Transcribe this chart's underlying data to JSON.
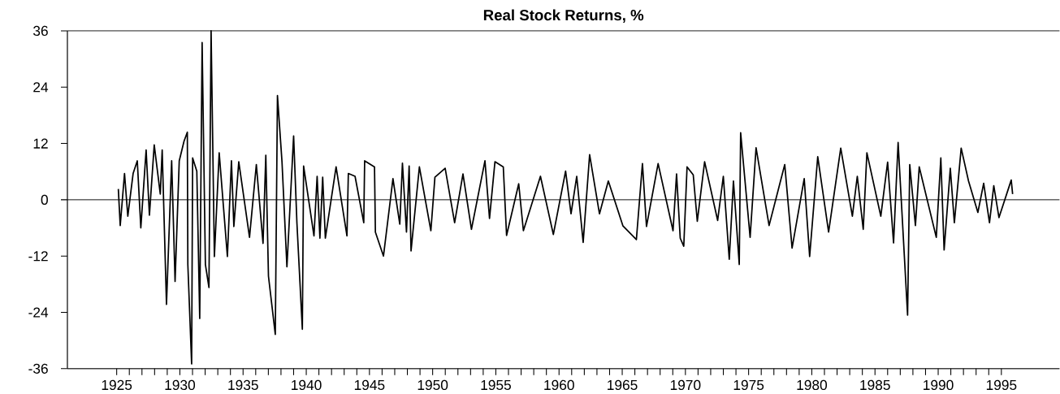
{
  "chart_data": {
    "type": "line",
    "title": "Real Stock Returns, %",
    "x": [
      1925.13,
      1925.28,
      1925.62,
      1925.88,
      1926.3,
      1926.63,
      1926.91,
      1927.33,
      1927.59,
      1927.97,
      1928.45,
      1928.6,
      1928.94,
      1929.35,
      1929.62,
      1929.95,
      1930.33,
      1930.59,
      1930.63,
      1930.93,
      1931.01,
      1931.34,
      1931.57,
      1931.76,
      1932.02,
      1932.3,
      1932.47,
      1932.73,
      1933.11,
      1933.76,
      1934.08,
      1934.27,
      1934.66,
      1935.51,
      1936.05,
      1936.58,
      1936.8,
      1937.01,
      1937.55,
      1937.72,
      1938.08,
      1938.47,
      1939.0,
      1939.26,
      1939.69,
      1939.79,
      1940.61,
      1940.86,
      1941.08,
      1941.3,
      1941.51,
      1942.36,
      1943.22,
      1943.33,
      1943.86,
      1944.55,
      1944.62,
      1945.4,
      1945.47,
      1946.11,
      1946.86,
      1947.4,
      1947.61,
      1947.93,
      1948.14,
      1948.29,
      1948.95,
      1949.86,
      1950.18,
      1950.99,
      1951.74,
      1952.4,
      1953.07,
      1954.14,
      1954.5,
      1954.93,
      1955.59,
      1955.85,
      1956.81,
      1957.18,
      1958.53,
      1959.55,
      1960.52,
      1960.95,
      1961.4,
      1961.91,
      1962.42,
      1963.2,
      1963.9,
      1965.06,
      1966.12,
      1966.6,
      1966.92,
      1967.84,
      1969.02,
      1969.3,
      1969.59,
      1969.87,
      1970.13,
      1970.62,
      1970.94,
      1971.52,
      1972.55,
      1973.0,
      1973.47,
      1973.8,
      1974.26,
      1974.37,
      1975.12,
      1975.59,
      1976.62,
      1977.86,
      1978.44,
      1979.4,
      1979.83,
      1980.47,
      1981.33,
      1982.29,
      1983.21,
      1983.6,
      1984.07,
      1984.36,
      1985.46,
      1986.0,
      1986.47,
      1986.83,
      1987.58,
      1987.75,
      1988.2,
      1988.5,
      1989.85,
      1990.21,
      1990.47,
      1990.96,
      1991.28,
      1991.82,
      1992.4,
      1993.14,
      1993.6,
      1994.06,
      1994.4,
      1994.81,
      1995.78,
      1995.89
    ],
    "values": [
      2.3,
      -5.5,
      5.6,
      -3.5,
      5.6,
      8.3,
      -6,
      10.6,
      -3.3,
      11.7,
      1.2,
      10.6,
      -22.3,
      8.3,
      -17.4,
      8.3,
      12.5,
      14.4,
      -13.8,
      -35,
      8.9,
      6.1,
      -25.3,
      33.5,
      -13.8,
      -18.7,
      36,
      -12.1,
      10,
      -12.1,
      8.3,
      -5.7,
      8.1,
      -8,
      7.5,
      -9.3,
      9.5,
      -16.3,
      -28.7,
      22.2,
      8.1,
      -14.3,
      13.6,
      -4.9,
      -27.6,
      7.2,
      -7.7,
      5,
      -8.2,
      4.8,
      -8.2,
      7,
      -7.7,
      5.6,
      5,
      -4.9,
      8.3,
      7,
      -6.9,
      -12,
      4.5,
      -5.2,
      7.8,
      -6.9,
      7.2,
      -10.9,
      7,
      -6.6,
      4.8,
      6.7,
      -4.9,
      5.5,
      -6.3,
      8.3,
      -4,
      8.1,
      7,
      -7.6,
      3.4,
      -6.6,
      5,
      -7.4,
      6.1,
      -3,
      5,
      -9.1,
      9.6,
      -3,
      4,
      -5.6,
      -8.5,
      7.7,
      -5.7,
      7.7,
      -6.6,
      5.5,
      -8.2,
      -9.9,
      7,
      5.3,
      -4.6,
      8.1,
      -4.4,
      5,
      -12.7,
      4,
      -13.8,
      14.3,
      -8,
      11.1,
      -5.5,
      7.5,
      -10.3,
      4.5,
      -12.1,
      9.2,
      -6.9,
      11,
      -3.5,
      5,
      -6.3,
      10,
      -3.5,
      8,
      -9.2,
      12.2,
      -24.6,
      7.5,
      -5.5,
      7,
      -8,
      8.9,
      -10.7,
      6.7,
      -4.9,
      11,
      4,
      -2.7,
      3.5,
      -4.9,
      3,
      -3.8,
      4.2,
      1.2
    ],
    "color": "#000000",
    "marker": "none",
    "line_style": "solid",
    "xlim": [
      1921.1,
      1999.6
    ],
    "ylim": [
      -36,
      36
    ],
    "xticks": [
      1925,
      {
        "value": 1926,
        "label": null
      },
      {
        "value": 1927,
        "label": null
      },
      {
        "value": 1928,
        "label": null
      },
      {
        "value": 1929,
        "label": null
      },
      1930,
      {
        "value": 1931,
        "label": null
      },
      {
        "value": 1932,
        "label": null
      },
      {
        "value": 1933,
        "label": null
      },
      {
        "value": 1934,
        "label": null
      },
      1935,
      {
        "value": 1936,
        "label": null
      },
      {
        "value": 1937,
        "label": null
      },
      {
        "value": 1938,
        "label": null
      },
      {
        "value": 1939,
        "label": null
      },
      1940,
      {
        "value": 1941,
        "label": null
      },
      {
        "value": 1942,
        "label": null
      },
      {
        "value": 1943,
        "label": null
      },
      {
        "value": 1944,
        "label": null
      },
      1945,
      {
        "value": 1946,
        "label": null
      },
      {
        "value": 1947,
        "label": null
      },
      {
        "value": 1948,
        "label": null
      },
      {
        "value": 1949,
        "label": null
      },
      1950,
      {
        "value": 1951,
        "label": null
      },
      {
        "value": 1952,
        "label": null
      },
      {
        "value": 1953,
        "label": null
      },
      {
        "value": 1954,
        "label": null
      },
      1955,
      {
        "value": 1956,
        "label": null
      },
      {
        "value": 1957,
        "label": null
      },
      {
        "value": 1958,
        "label": null
      },
      {
        "value": 1959,
        "label": null
      },
      1960,
      {
        "value": 1961,
        "label": null
      },
      {
        "value": 1962,
        "label": null
      },
      {
        "value": 1963,
        "label": null
      },
      {
        "value": 1964,
        "label": null
      },
      1965,
      {
        "value": 1966,
        "label": null
      },
      {
        "value": 1967,
        "label": null
      },
      {
        "value": 1968,
        "label": null
      },
      {
        "value": 1969,
        "label": null
      },
      1970,
      {
        "value": 1971,
        "label": null
      },
      {
        "value": 1972,
        "label": null
      },
      {
        "value": 1973,
        "label": null
      },
      {
        "value": 1974,
        "label": null
      },
      1975,
      {
        "value": 1976,
        "label": null
      },
      {
        "value": 1977,
        "label": null
      },
      {
        "value": 1978,
        "label": null
      },
      {
        "value": 1979,
        "label": null
      },
      1980,
      {
        "value": 1981,
        "label": null
      },
      {
        "value": 1982,
        "label": null
      },
      {
        "value": 1983,
        "label": null
      },
      {
        "value": 1984,
        "label": null
      },
      1985,
      {
        "value": 1986,
        "label": null
      },
      {
        "value": 1987,
        "label": null
      },
      {
        "value": 1988,
        "label": null
      },
      {
        "value": 1989,
        "label": null
      },
      1990,
      {
        "value": 1991,
        "label": null
      },
      {
        "value": 1992,
        "label": null
      },
      {
        "value": 1993,
        "label": null
      },
      {
        "value": 1994,
        "label": null
      },
      1995
    ],
    "yticks": [
      -36,
      -24,
      -12,
      0,
      12,
      24,
      36
    ],
    "ref_lines": [
      {
        "axis": "y",
        "value": 0
      }
    ]
  }
}
